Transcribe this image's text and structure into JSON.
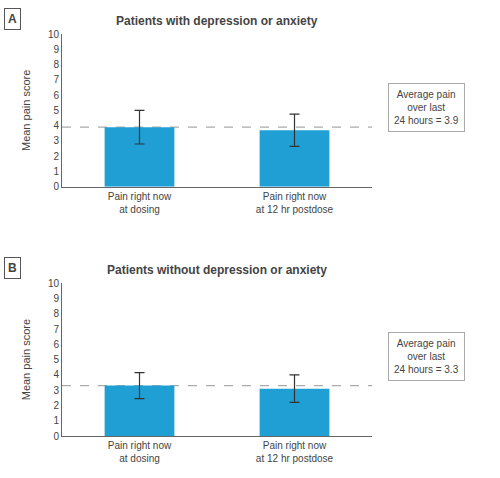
{
  "chart_data": [
    {
      "type": "bar",
      "label": "A",
      "title": "Patients with depression or anxiety",
      "categories": [
        "Pain right now\nat dosing",
        "Pain right now\nat 12 hr postdose"
      ],
      "values": [
        3.9,
        3.7
      ],
      "errors": [
        1.1,
        1.05
      ],
      "reference_line": 3.9,
      "annotation": "Average pain\nover last\n24 hours = 3.9",
      "ylabel": "Mean pain score",
      "color": "#1f9fd4",
      "ylim": [
        0,
        10
      ],
      "yticks": [
        0,
        1,
        2,
        3,
        4,
        5,
        6,
        7,
        8,
        9,
        10
      ],
      "grid": false
    },
    {
      "type": "bar",
      "label": "B",
      "title": "Patients without depression or anxiety",
      "categories": [
        "Pain right now\nat dosing",
        "Pain right now\nat 12 hr postdose"
      ],
      "values": [
        3.3,
        3.1
      ],
      "errors": [
        0.85,
        0.9
      ],
      "reference_line": 3.3,
      "annotation": "Average pain\nover last\n24 hours = 3.3",
      "ylabel": "Mean pain score",
      "color": "#1f9fd4",
      "ylim": [
        0,
        10
      ],
      "yticks": [
        0,
        1,
        2,
        3,
        4,
        5,
        6,
        7,
        8,
        9,
        10
      ],
      "grid": false
    }
  ]
}
